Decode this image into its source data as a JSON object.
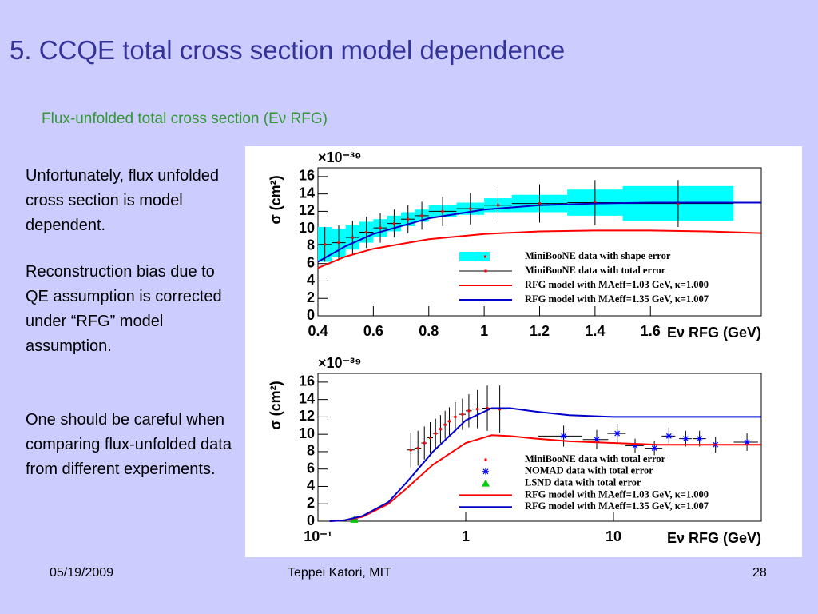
{
  "title": "5. CCQE total cross section model dependence",
  "subtitle": "Flux-unfolded total cross section (Eν RFG)",
  "body": [
    "Unfortunately, flux unfolded cross section is model dependent.",
    "Reconstruction bias due to QE assumption is corrected under “RFG” model assumption.",
    "One should be careful when comparing flux-unfolded data from different experiments."
  ],
  "footer": {
    "date": "05/19/2009",
    "author": "Teppei Katori, MIT",
    "page": "28"
  },
  "chart_data": [
    {
      "type": "errorbar",
      "ylabel": "σ (cm²)",
      "yexponent": "×10⁻³⁹",
      "xlabel": "Eν RFG (GeV)",
      "xlim": [
        0.4,
        2.0
      ],
      "xticks": [
        0.4,
        0.6,
        0.8,
        1,
        1.2,
        1.4,
        1.6
      ],
      "ylim": [
        0,
        17
      ],
      "yticks": [
        0,
        2,
        4,
        6,
        8,
        10,
        12,
        14,
        16
      ],
      "xlog": false,
      "series": [
        {
          "name": "MiniBooNE data with shape error",
          "kind": "band",
          "color": "#00ffff",
          "x": [
            0.425,
            0.475,
            0.525,
            0.575,
            0.625,
            0.675,
            0.725,
            0.775,
            0.85,
            0.95,
            1.05,
            1.2,
            1.4,
            1.7
          ],
          "x_errors": [
            0.025,
            0.025,
            0.025,
            0.025,
            0.025,
            0.025,
            0.025,
            0.025,
            0.05,
            0.05,
            0.05,
            0.1,
            0.1,
            0.2
          ],
          "values": [
            8.2,
            8.4,
            9.0,
            9.6,
            10.1,
            10.6,
            11.1,
            11.5,
            12.0,
            12.3,
            12.7,
            12.9,
            13.0,
            12.9
          ],
          "errors": [
            2.0,
            1.6,
            1.4,
            1.2,
            1.0,
            0.9,
            0.8,
            0.7,
            0.7,
            0.7,
            0.8,
            1.0,
            1.5,
            2.0
          ]
        },
        {
          "name": "MiniBooNE data with total error",
          "kind": "points",
          "marker": "square",
          "color": "#ff0000",
          "x": [
            0.425,
            0.475,
            0.525,
            0.575,
            0.625,
            0.675,
            0.725,
            0.775,
            0.85,
            0.95,
            1.05,
            1.2,
            1.4,
            1.7
          ],
          "x_errors": [
            0.025,
            0.025,
            0.025,
            0.025,
            0.025,
            0.025,
            0.025,
            0.025,
            0.05,
            0.05,
            0.05,
            0.1,
            0.1,
            0.2
          ],
          "values": [
            8.2,
            8.4,
            9.0,
            9.6,
            10.1,
            10.6,
            11.1,
            11.5,
            12.0,
            12.3,
            12.7,
            12.9,
            13.0,
            12.9
          ],
          "errors": [
            2.0,
            2.0,
            1.9,
            1.8,
            1.7,
            1.6,
            1.6,
            1.6,
            1.7,
            1.8,
            1.9,
            2.2,
            2.6,
            2.7
          ]
        },
        {
          "name": "RFG model with MAeff=1.03 GeV, κ=1.000",
          "kind": "line",
          "color": "#ff0000",
          "x": [
            0.4,
            0.5,
            0.6,
            0.8,
            1.0,
            1.2,
            1.4,
            1.6,
            1.8,
            2.0
          ],
          "values": [
            5.5,
            6.8,
            7.7,
            8.8,
            9.4,
            9.7,
            9.8,
            9.8,
            9.7,
            9.5
          ]
        },
        {
          "name": "RFG model with MAeff=1.35 GeV, κ=1.007",
          "kind": "line",
          "color": "#0000cc",
          "x": [
            0.4,
            0.5,
            0.6,
            0.8,
            1.0,
            1.2,
            1.4,
            1.6,
            1.8,
            2.0
          ],
          "values": [
            6.2,
            8.0,
            9.4,
            11.2,
            12.2,
            12.7,
            12.9,
            13.0,
            13.0,
            13.0
          ]
        }
      ]
    },
    {
      "type": "errorbar",
      "ylabel": "σ (cm²)",
      "yexponent": "×10⁻³⁹",
      "xlabel": "Eν RFG (GeV)",
      "xlim": [
        0.1,
        100
      ],
      "xticks": [
        {
          "value": 0.1,
          "label": "10⁻¹"
        },
        1,
        10
      ],
      "ylim": [
        0,
        17
      ],
      "yticks": [
        0,
        2,
        4,
        6,
        8,
        10,
        12,
        14,
        16
      ],
      "xlog": true,
      "series": [
        {
          "name": "MiniBooNE data with total error",
          "kind": "points",
          "marker": "square",
          "color": "#ff0000",
          "x": [
            0.425,
            0.475,
            0.525,
            0.575,
            0.625,
            0.675,
            0.725,
            0.775,
            0.85,
            0.95,
            1.05,
            1.2,
            1.4,
            1.7
          ],
          "x_errors": [
            0.025,
            0.025,
            0.025,
            0.025,
            0.025,
            0.025,
            0.025,
            0.025,
            0.05,
            0.05,
            0.05,
            0.1,
            0.1,
            0.2
          ],
          "values": [
            8.2,
            8.4,
            9.0,
            9.6,
            10.1,
            10.6,
            11.1,
            11.5,
            12.0,
            12.3,
            12.7,
            12.9,
            13.0,
            12.9
          ],
          "errors": [
            2.0,
            2.0,
            1.9,
            1.8,
            1.7,
            1.6,
            1.6,
            1.6,
            1.7,
            1.8,
            1.9,
            2.2,
            2.6,
            2.7
          ]
        },
        {
          "name": "NOMAD data with total error",
          "kind": "points",
          "marker": "star",
          "color": "#0000ff",
          "x": [
            4.6,
            7.7,
            10.6,
            14.0,
            18.9,
            23.7,
            30.8,
            38.2,
            49,
            80
          ],
          "x_errors": [
            1.5,
            1.5,
            1.5,
            2,
            2.5,
            2.5,
            3,
            4,
            5,
            15
          ],
          "values": [
            9.8,
            9.4,
            10.1,
            8.7,
            8.4,
            9.8,
            9.5,
            9.5,
            8.8,
            9.1
          ],
          "errors": [
            1.2,
            1.1,
            1.1,
            0.8,
            0.8,
            1.0,
            0.9,
            0.9,
            0.9,
            1.0
          ]
        },
        {
          "name": "LSND data with total error",
          "kind": "points",
          "marker": "triangle",
          "color": "#00cc00",
          "x": [
            0.176
          ],
          "x_errors": [
            0.01
          ],
          "values": [
            0.2
          ],
          "errors": [
            0.1
          ]
        },
        {
          "name": "RFG model with MAeff=1.03 GeV, κ=1.000",
          "kind": "line",
          "color": "#ff0000",
          "x": [
            0.12,
            0.15,
            0.2,
            0.3,
            0.4,
            0.6,
            1,
            1.5,
            2,
            3,
            5,
            10,
            20,
            50,
            100
          ],
          "values": [
            0,
            0.1,
            0.5,
            2.0,
            3.8,
            6.5,
            9.0,
            9.9,
            9.8,
            9.5,
            9.2,
            9.0,
            8.8,
            8.8,
            8.8
          ]
        },
        {
          "name": "RFG model with MAeff=1.35 GeV, κ=1.007",
          "kind": "line",
          "color": "#0000cc",
          "x": [
            0.12,
            0.15,
            0.2,
            0.3,
            0.4,
            0.6,
            1,
            1.5,
            2,
            3,
            5,
            10,
            20,
            50,
            100
          ],
          "values": [
            0,
            0.1,
            0.6,
            2.2,
            4.5,
            8.0,
            11.6,
            13.0,
            13.0,
            12.6,
            12.2,
            12.0,
            12.0,
            12.0,
            12.0
          ]
        }
      ]
    }
  ]
}
